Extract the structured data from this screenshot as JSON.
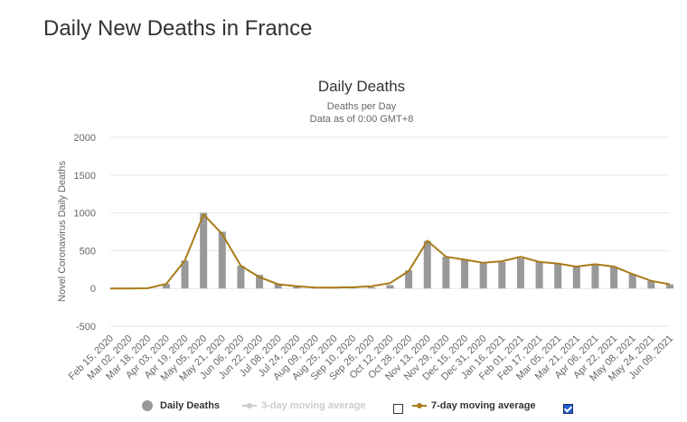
{
  "page": {
    "title": "Daily New Deaths in France"
  },
  "chart_data": {
    "type": "bar",
    "title": "Daily Deaths",
    "subtitle": "Deaths per Day",
    "subtitle2": "Data as of 0:00 GMT+8",
    "ylabel": "Novel Coronavirus Daily Deaths",
    "xlabel": "",
    "ylim": [
      -500,
      2000
    ],
    "yticks": [
      2000,
      1500,
      1000,
      500,
      0,
      -500
    ],
    "categories": [
      "Feb 15, 2020",
      "Mar 02, 2020",
      "Mar 18, 2020",
      "Apr 03, 2020",
      "Apr 19, 2020",
      "May 05, 2020",
      "May 21, 2020",
      "Jun 06, 2020",
      "Jun 22, 2020",
      "Jul 08, 2020",
      "Jul 24, 2020",
      "Aug 09, 2020",
      "Aug 25, 2020",
      "Sep 10, 2020",
      "Sep 26, 2020",
      "Oct 12, 2020",
      "Oct 28, 2020",
      "Nov 13, 2020",
      "Nov 29, 2020",
      "Dec 15, 2020",
      "Dec 31, 2020",
      "Jan 16, 2021",
      "Feb 01, 2021",
      "Feb 17, 2021",
      "Mar 05, 2021",
      "Mar 21, 2021",
      "Apr 06, 2021",
      "Apr 22, 2021",
      "May 08, 2021",
      "May 24, 2021",
      "Jun 09, 2021"
    ],
    "series": [
      {
        "name": "Daily Deaths",
        "color": "#999999",
        "values": [
          0,
          0,
          2,
          60,
          370,
          1000,
          750,
          300,
          180,
          60,
          35,
          12,
          12,
          10,
          15,
          45,
          240,
          630,
          420,
          390,
          340,
          350,
          400,
          350,
          330,
          290,
          320,
          290,
          190,
          100,
          55
        ]
      },
      {
        "name": "7-day moving average",
        "color": "#a87b17",
        "values": [
          0,
          0,
          2,
          60,
          370,
          980,
          720,
          300,
          150,
          55,
          30,
          12,
          12,
          15,
          30,
          70,
          230,
          630,
          420,
          380,
          340,
          360,
          420,
          350,
          330,
          290,
          320,
          290,
          190,
          100,
          55
        ]
      }
    ],
    "legend": {
      "items": [
        {
          "label": "Daily Deaths",
          "color": "#999999"
        },
        {
          "label": "3-day moving average",
          "color": "#cccccc"
        },
        {
          "label": "7-day moving average",
          "color": "#a87b17"
        }
      ],
      "position": "bottom"
    }
  }
}
